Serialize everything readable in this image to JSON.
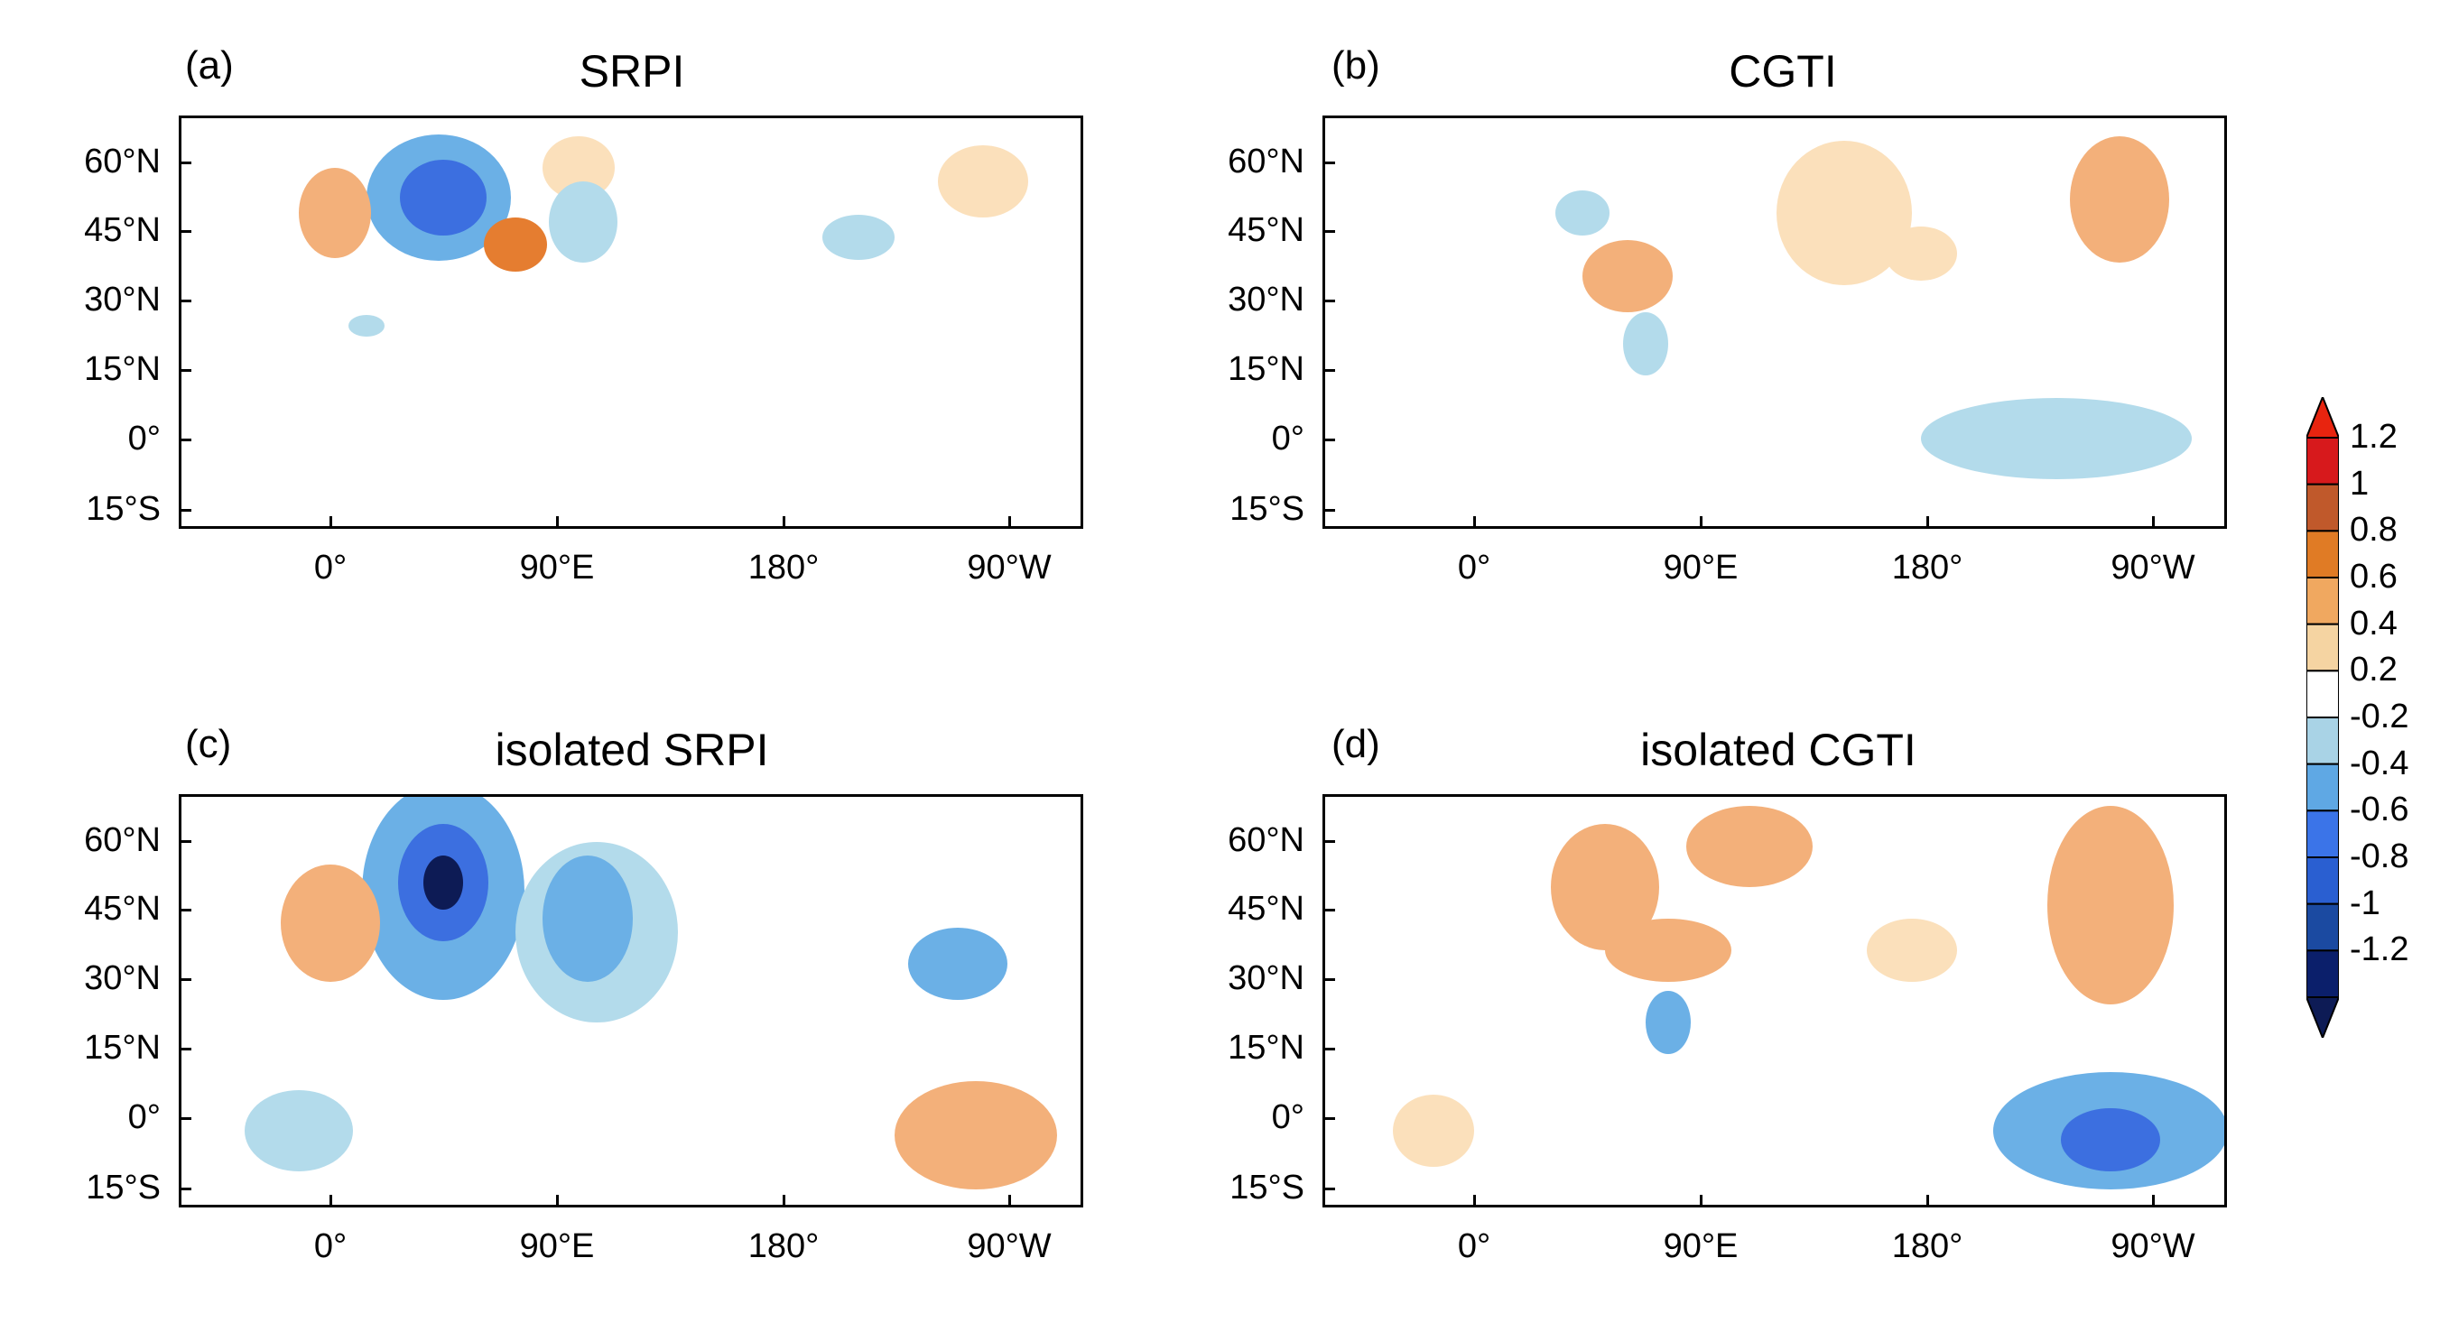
{
  "figure": {
    "panels": [
      {
        "letter": "(a)",
        "title": "SRPI"
      },
      {
        "letter": "(b)",
        "title": "CGTI"
      },
      {
        "letter": "(c)",
        "title": "isolated SRPI"
      },
      {
        "letter": "(d)",
        "title": "isolated CGTI"
      }
    ],
    "lat_labels": [
      "60°N",
      "45°N",
      "30°N",
      "15°N",
      "0°",
      "15°S"
    ],
    "lon_labels": [
      "0°",
      "90°E",
      "180°",
      "90°W"
    ],
    "colorbar": {
      "labels": [
        "1.2",
        "1",
        "0.8",
        "0.6",
        "0.4",
        "0.2",
        "-0.2",
        "-0.4",
        "-0.6",
        "-0.8",
        "-1",
        "-1.2"
      ],
      "colors": [
        "#d7191c",
        "#c0592b",
        "#e07b25",
        "#f0a860",
        "#f5d4a2",
        "#ffffff",
        "#a9d3e6",
        "#5fa8e4",
        "#3b74e8",
        "#2a5fd1",
        "#1b4aa1",
        "#0b1f6b"
      ],
      "top_color": "#e8240f",
      "bottom_color": "#0d1b55"
    },
    "anomaly_colors": {
      "warm_weak": "#fbe0bb",
      "warm_mid": "#f3b07a",
      "warm_strong": "#e57d30",
      "cool_weak": "#b3dbeb",
      "cool_mid": "#6bb0e6",
      "cool_strong": "#3c6fe0",
      "cool_darkest": "#0d1b55"
    }
  }
}
